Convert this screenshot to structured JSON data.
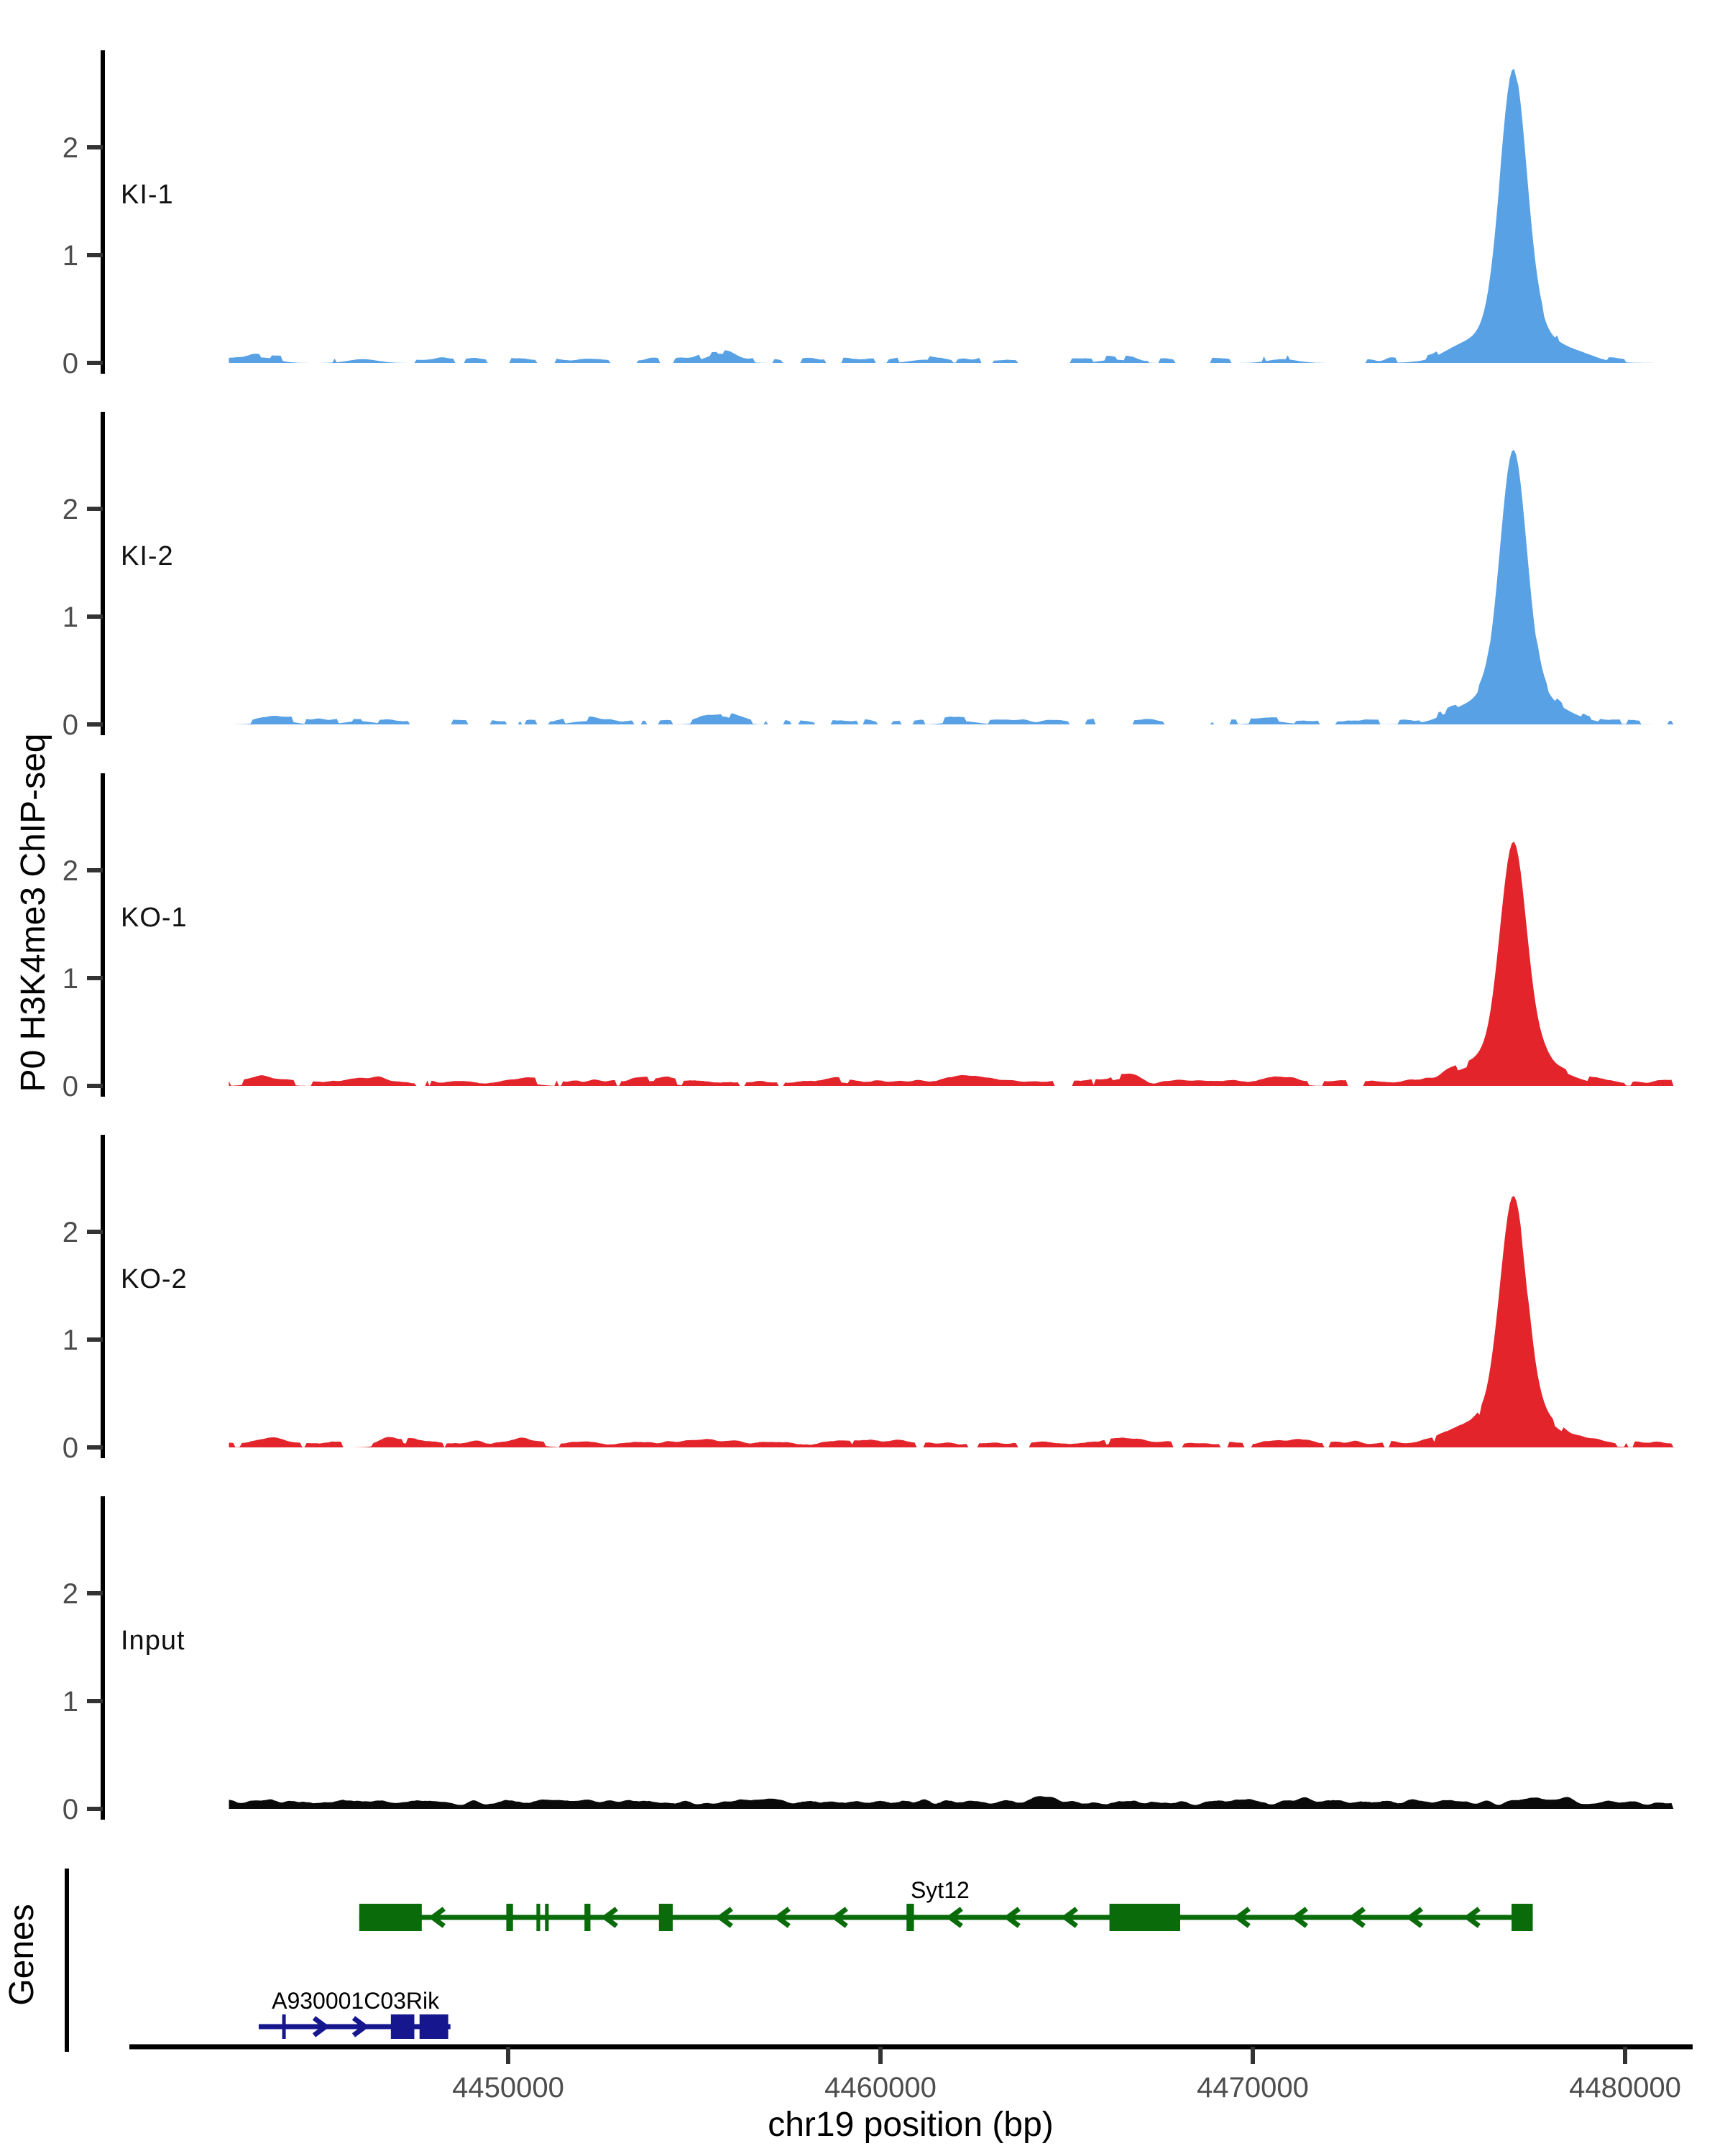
{
  "figure": {
    "background": "#ffffff",
    "y_axis_label": "P0 H3K4me3 ChIP-seq",
    "genes_panel_label": "Genes",
    "x_axis_label": "chr19 position (bp)"
  },
  "chart_data": {
    "type": "area",
    "title": "",
    "xlabel": "chr19 position (bp)",
    "ylabel": "P0 H3K4me3 ChIP-seq",
    "legend": "none",
    "grid": false,
    "x_domain_bp": [
      4439800,
      4481800
    ],
    "x_ticks_bp": [
      4450000,
      4460000,
      4470000,
      4480000
    ],
    "x_tick_labels": [
      "4450000",
      "4460000",
      "4470000",
      "4480000"
    ],
    "y_ticks": [
      0,
      1,
      2
    ],
    "y_max": 2.9,
    "signal_range_bp": [
      4442500,
      4481300
    ],
    "tracks": [
      {
        "label": "KI-1",
        "color": "#58a1e4",
        "seed": 11,
        "noise_amp": 0.045,
        "coverage_gap_threshold": 0.52,
        "peak": {
          "center_bp": 4477000,
          "apex": 2.7,
          "sigma_bp": 350,
          "base_sigma_bp": 1000
        },
        "bumps": [
          [
            4443400,
            0.05
          ],
          [
            4446100,
            0.035
          ],
          [
            4455700,
            0.085
          ],
          [
            4461200,
            0.03
          ],
          [
            4466300,
            0.03
          ],
          [
            4470800,
            0.035
          ],
          [
            4475400,
            0.04
          ],
          [
            4478900,
            0.03
          ]
        ]
      },
      {
        "label": "KI-2",
        "color": "#58a1e4",
        "seed": 23,
        "noise_amp": 0.045,
        "coverage_gap_threshold": 0.5,
        "peak": {
          "center_bp": 4477000,
          "apex": 2.55,
          "sigma_bp": 350,
          "base_sigma_bp": 1000
        },
        "bumps": [
          [
            4443800,
            0.04
          ],
          [
            4446000,
            0.03
          ],
          [
            4452100,
            0.03
          ],
          [
            4455700,
            0.075
          ],
          [
            4462200,
            0.03
          ],
          [
            4470500,
            0.03
          ],
          [
            4475400,
            0.035
          ]
        ]
      },
      {
        "label": "KO-1",
        "color": "#e3242b",
        "seed": 37,
        "noise_amp": 0.05,
        "coverage_gap_threshold": 0.36,
        "peak": {
          "center_bp": 4477000,
          "apex": 2.2,
          "sigma_bp": 350,
          "base_sigma_bp": 1000
        },
        "bumps": [
          [
            4443500,
            0.04
          ],
          [
            4446300,
            0.04
          ],
          [
            4450300,
            0.035
          ],
          [
            4453900,
            0.045
          ],
          [
            4458800,
            0.035
          ],
          [
            4462400,
            0.05
          ],
          [
            4466500,
            0.065
          ],
          [
            4470800,
            0.035
          ],
          [
            4475300,
            0.04
          ]
        ]
      },
      {
        "label": "KO-2",
        "color": "#e3242b",
        "seed": 49,
        "noise_amp": 0.05,
        "coverage_gap_threshold": 0.38,
        "peak": {
          "center_bp": 4477000,
          "apex": 2.3,
          "sigma_bp": 350,
          "base_sigma_bp": 1000
        },
        "bumps": [
          [
            4443600,
            0.04
          ],
          [
            4447000,
            0.045
          ],
          [
            4450500,
            0.03
          ],
          [
            4455100,
            0.04
          ],
          [
            4459600,
            0.045
          ],
          [
            4466500,
            0.05
          ],
          [
            4471000,
            0.035
          ],
          [
            4475400,
            0.04
          ]
        ]
      },
      {
        "label": "Input",
        "color": "#0a0a0a",
        "seed": 61,
        "noise_amp": 0.075,
        "coverage_gap_threshold": 0.0,
        "peak": null,
        "bumps": [
          [
            4448000,
            0.02
          ],
          [
            4457000,
            0.025
          ],
          [
            4464500,
            0.03
          ],
          [
            4471500,
            0.025
          ],
          [
            4477500,
            0.03
          ]
        ]
      }
    ],
    "genes": [
      {
        "name": "Syt12",
        "color": "#0a6b0a",
        "strand": "-",
        "row": 0,
        "start_bp": 4446000,
        "end_bp": 4477520,
        "exons_bp": [
          [
            4446000,
            4447680
          ],
          [
            4449950,
            4450130
          ],
          [
            4450760,
            4450860
          ],
          [
            4450990,
            4451090
          ],
          [
            4452050,
            4452210
          ],
          [
            4454050,
            4454420
          ],
          [
            4460700,
            4460900
          ],
          [
            4466150,
            4468050
          ],
          [
            4476950,
            4477520
          ]
        ],
        "label_bp": 4461600,
        "arrow_spacing_px": 80
      },
      {
        "name": "A930001C03Rik",
        "color": "#16168f",
        "strand": "+",
        "row": 1,
        "start_bp": 4443300,
        "end_bp": 4448450,
        "exons_bp": [
          [
            4443930,
            4444010
          ],
          [
            4446850,
            4447480
          ],
          [
            4447620,
            4448390
          ]
        ],
        "label_bp": 4445900,
        "arrow_spacing_px": 55
      }
    ]
  }
}
